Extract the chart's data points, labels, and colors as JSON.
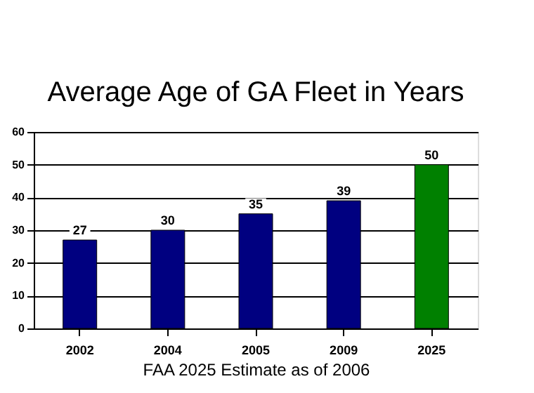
{
  "chart_data": {
    "type": "bar",
    "title": "Average Age of GA Fleet in Years",
    "categories": [
      "2002",
      "2004",
      "2005",
      "2009",
      "2025"
    ],
    "values": [
      27,
      30,
      35,
      39,
      50
    ],
    "colors": [
      "#000080",
      "#000080",
      "#000080",
      "#000080",
      "#008000"
    ],
    "ylim": [
      0,
      60
    ],
    "yticks": [
      0,
      10,
      20,
      30,
      40,
      50,
      60
    ],
    "grid": "y",
    "data_labels": true,
    "annotations": [
      "FAA 2025 Estimate as of 2006"
    ]
  }
}
